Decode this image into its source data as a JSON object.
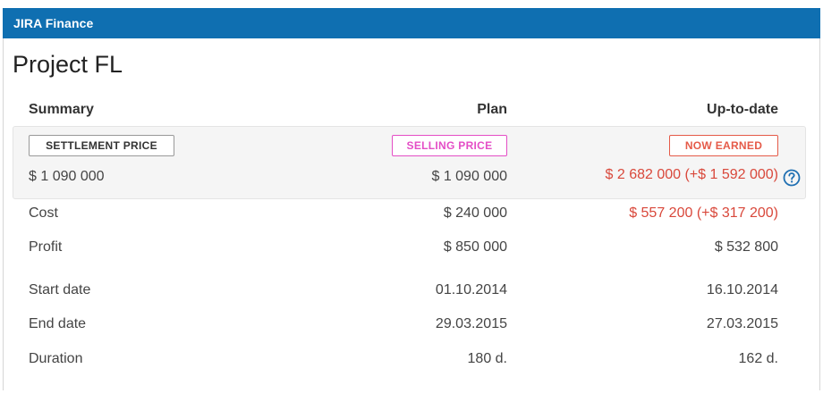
{
  "app": {
    "title": "JIRA Finance"
  },
  "project": {
    "title": "Project FL"
  },
  "table": {
    "headers": {
      "summary": "Summary",
      "plan": "Plan",
      "up_to_date": "Up-to-date"
    },
    "price": {
      "settlement_label": "SETTLEMENT PRICE",
      "selling_label": "SELLING PRICE",
      "earned_label": "NOW EARNED",
      "settlement_value": "$ 1 090 000",
      "plan_value": "$ 1 090 000",
      "up_to_date_value": "$ 2 682 000 (+$ 1 592 000)"
    },
    "rows": [
      {
        "label": "Cost",
        "plan": "$ 240 000",
        "up_to_date": "$ 557 200 (+$ 317 200)"
      },
      {
        "label": "Profit",
        "plan": "$ 850 000",
        "up_to_date": "$ 532 800"
      },
      {
        "label": "Start date",
        "plan": "01.10.2014",
        "up_to_date": "16.10.2014"
      },
      {
        "label": "End date",
        "plan": "29.03.2015",
        "up_to_date": "27.03.2015"
      },
      {
        "label": "Duration",
        "plan": "180 d.",
        "up_to_date": "162 d."
      }
    ]
  },
  "colors": {
    "header_bar": "#0f6fb1",
    "selling_accent": "#e44ec6",
    "earned_accent": "#e55a48",
    "over_budget_text": "#d9483b",
    "help_icon": "#1f6fb2"
  },
  "icons": {
    "help": "question-circle-icon"
  }
}
